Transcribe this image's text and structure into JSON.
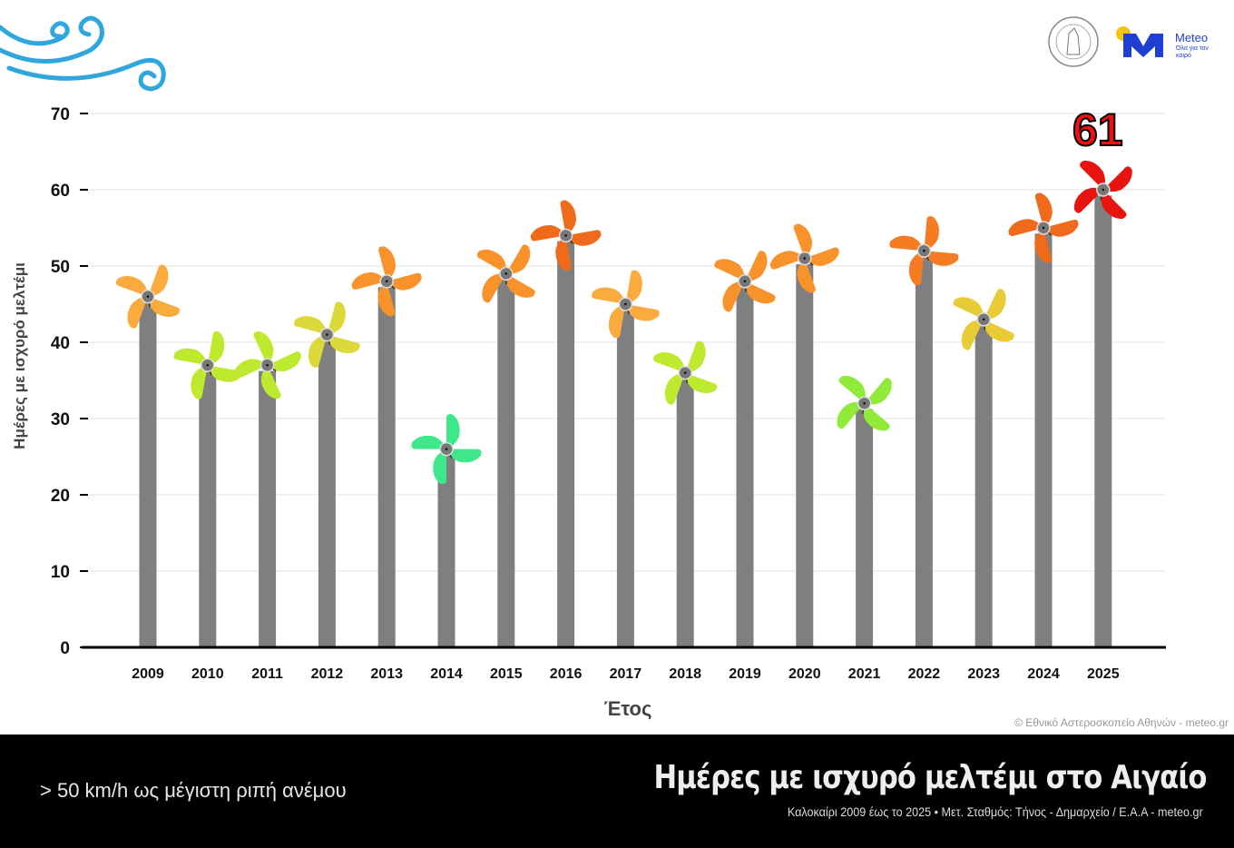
{
  "chart_data": {
    "type": "bar",
    "title": "Ημέρες με ισχυρό μελτέμι στο Αιγαίο",
    "subtitle": "Καλοκαίρι 2009 έως το 2025 • Μετ. Σταθμός: Τήνος - Δημαρχείο / Ε.Α.Α - meteo.gr",
    "note": "> 50 km/h ως μέγιστη ριπή ανέμου",
    "xlabel": "Έτος",
    "ylabel": "Ημέρες με ισχυρό μελτέμι",
    "ylim": [
      0,
      70
    ],
    "yticks": [
      0,
      10,
      20,
      30,
      40,
      50,
      60,
      70
    ],
    "grid": true,
    "categories": [
      "2009",
      "2010",
      "2011",
      "2012",
      "2013",
      "2014",
      "2015",
      "2016",
      "2017",
      "2018",
      "2019",
      "2020",
      "2021",
      "2022",
      "2023",
      "2024",
      "2025"
    ],
    "values": [
      47,
      38,
      38,
      42,
      49,
      27,
      50,
      55,
      46,
      37,
      49,
      52,
      33,
      53,
      44,
      56,
      61
    ],
    "annotations": [
      {
        "category": "2025",
        "text": "61"
      }
    ],
    "bar_color": "#7f7f7f"
  },
  "credits": "© Εθνικό Αστεροσκοπείο Αθηνών - meteo.gr",
  "logo": {
    "name": "Meteo",
    "tagline": "Όλα για τον καιρό"
  }
}
